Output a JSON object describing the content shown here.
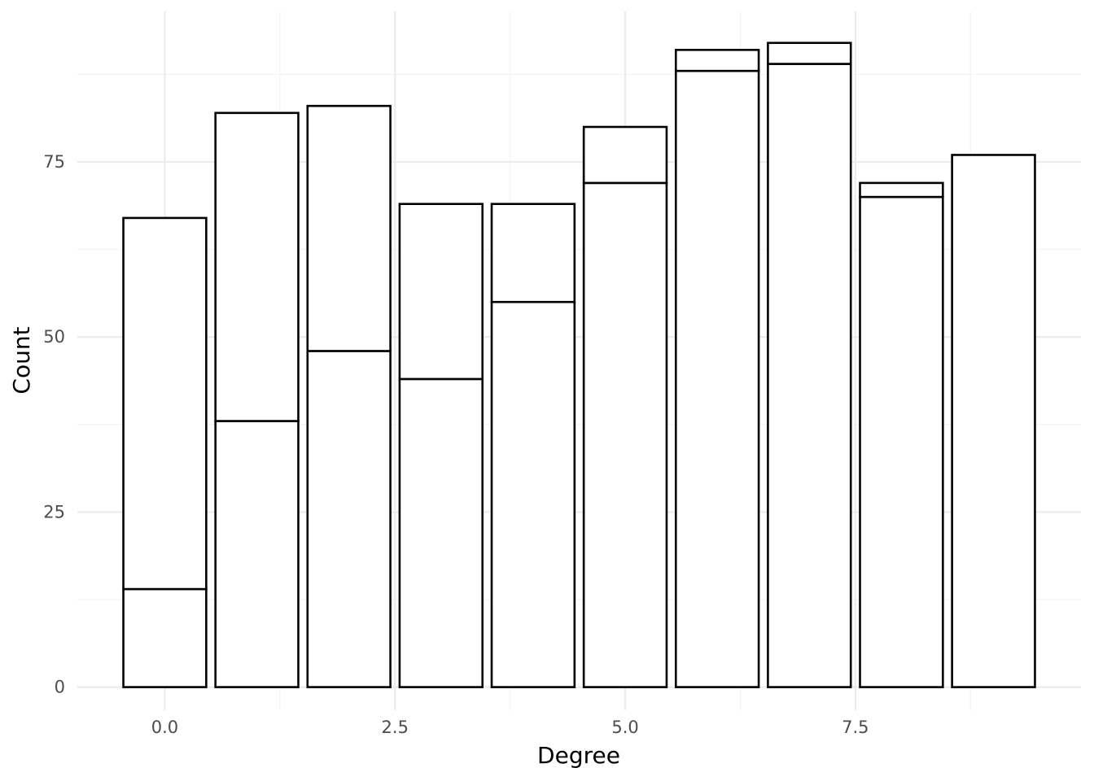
{
  "chart_data": {
    "type": "bar",
    "stacked": true,
    "title": "",
    "xlabel": "Degree",
    "ylabel": "Count",
    "xlim": [
      -0.95,
      9.95
    ],
    "ylim": [
      -3.3,
      96.5
    ],
    "x_ticks": [
      {
        "value": 0.0,
        "label": "0.0"
      },
      {
        "value": 2.5,
        "label": "2.5"
      },
      {
        "value": 5.0,
        "label": "5.0"
      },
      {
        "value": 7.5,
        "label": "7.5"
      }
    ],
    "x_minor_ticks": [
      -1.25,
      1.25,
      3.75,
      6.25,
      8.75
    ],
    "y_ticks": [
      {
        "value": 0,
        "label": "0"
      },
      {
        "value": 25,
        "label": "25"
      },
      {
        "value": 50,
        "label": "50"
      },
      {
        "value": 75,
        "label": "75"
      }
    ],
    "y_minor_ticks": [
      12.5,
      37.5,
      62.5,
      87.5
    ],
    "grid": true,
    "legend": "none",
    "bar_width": 0.9,
    "bar_fill": "#ffffff",
    "bar_outline": "#000000",
    "x": [
      0,
      1,
      2,
      3,
      4,
      5,
      6,
      7,
      8,
      9
    ],
    "series": [
      {
        "values": [
          14,
          38,
          48,
          44,
          55,
          72,
          88,
          89,
          70,
          76
        ]
      },
      {
        "values": [
          53,
          44,
          35,
          25,
          14,
          8,
          3,
          3,
          2,
          0
        ]
      }
    ]
  }
}
